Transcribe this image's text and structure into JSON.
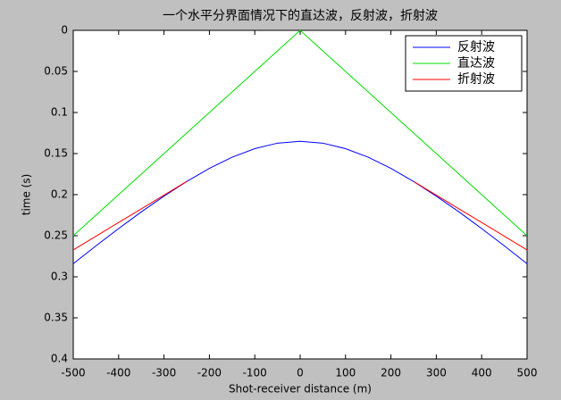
{
  "chart_data": {
    "type": "line",
    "title": "一个水平分界面情况下的直达波，反射波，折射波",
    "xlabel": "Shot-receiver distance (m)",
    "ylabel": "time (s)",
    "x": [
      -500,
      -450,
      -400,
      -350,
      -300,
      -250,
      -200,
      -150,
      -100,
      -50,
      0,
      50,
      100,
      150,
      200,
      250,
      300,
      350,
      400,
      450,
      500
    ],
    "series": [
      {
        "name": "反射波",
        "color": "#0000ff",
        "values": [
          0.2841,
          0.2624,
          0.2413,
          0.221,
          0.2018,
          0.184,
          0.168,
          0.1544,
          0.144,
          0.1373,
          0.135,
          0.1373,
          0.144,
          0.1544,
          0.168,
          0.184,
          0.2018,
          0.221,
          0.2413,
          0.2624,
          0.2841
        ]
      },
      {
        "name": "直达波",
        "color": "#00dd00",
        "values": [
          0.25,
          0.225,
          0.2,
          0.175,
          0.15,
          0.125,
          0.1,
          0.075,
          0.05,
          0.025,
          0,
          0.025,
          0.05,
          0.075,
          0.1,
          0.125,
          0.15,
          0.175,
          0.2,
          0.225,
          0.25
        ]
      },
      {
        "name": "折射波",
        "color": "#ff0000",
        "values": [
          0.2673,
          0.2506,
          0.2339,
          0.2173,
          0.2006,
          0.1839,
          null,
          null,
          null,
          null,
          null,
          null,
          null,
          null,
          null,
          0.1839,
          0.2006,
          0.2173,
          0.2339,
          0.2506,
          0.2673
        ]
      }
    ],
    "xlim": [
      -500,
      500
    ],
    "ylim": [
      0,
      0.4
    ],
    "y_reversed": true,
    "xticks": [
      -500,
      -400,
      -300,
      -200,
      -100,
      0,
      100,
      200,
      300,
      400,
      500
    ],
    "yticks": [
      0,
      0.05,
      0.1,
      0.15,
      0.2,
      0.25,
      0.3,
      0.35,
      0.4
    ],
    "legend": "top-right"
  }
}
